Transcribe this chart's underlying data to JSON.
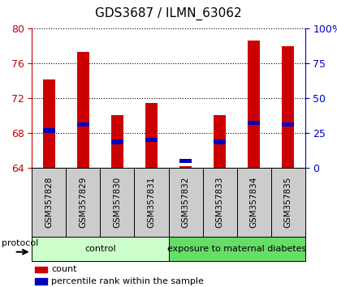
{
  "title": "GDS3687 / ILMN_63062",
  "samples": [
    "GSM357828",
    "GSM357829",
    "GSM357830",
    "GSM357831",
    "GSM357832",
    "GSM357833",
    "GSM357834",
    "GSM357835"
  ],
  "red_values": [
    74.2,
    77.3,
    70.1,
    71.5,
    64.2,
    70.1,
    78.6,
    78.0
  ],
  "blue_values": [
    68.3,
    69.0,
    67.0,
    67.2,
    64.8,
    67.0,
    69.2,
    69.0
  ],
  "ylim_left": [
    64,
    80
  ],
  "ylim_right": [
    0,
    100
  ],
  "yticks_left": [
    64,
    68,
    72,
    76,
    80
  ],
  "yticks_right": [
    0,
    25,
    50,
    75,
    100
  ],
  "ytick_labels_right": [
    "0",
    "25",
    "50",
    "75",
    "100%"
  ],
  "left_color": "#cc0000",
  "right_color": "#0000cc",
  "bar_color": "#cc0000",
  "blue_dot_color": "#0000bb",
  "bar_width": 0.35,
  "blue_bar_height": 0.5,
  "groups": [
    {
      "label": "control",
      "start": 0,
      "end": 3,
      "color": "#ccffcc"
    },
    {
      "label": "exposure to maternal diabetes",
      "start": 4,
      "end": 7,
      "color": "#66dd66"
    }
  ],
  "protocol_label": "protocol",
  "legend_red": "count",
  "legend_blue": "percentile rank within the sample",
  "grid_color": "black",
  "bar_bottom": 64,
  "sample_box_color": "#cccccc",
  "fig_width": 4.15,
  "fig_height": 3.54
}
